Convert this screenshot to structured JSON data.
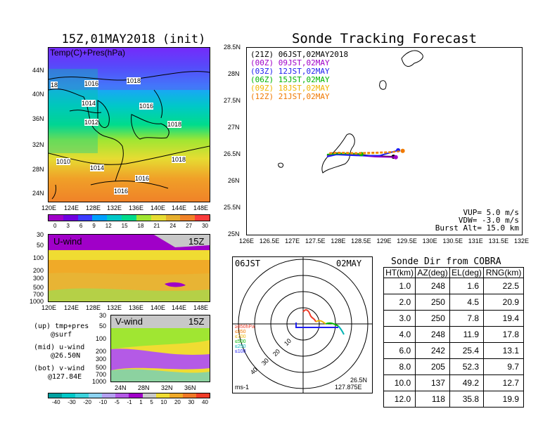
{
  "map_panel": {
    "title": "15Z,01MAY2018 (init)",
    "overlay_label": "Temp(C)+Pres(hPa)",
    "lat_labels": [
      "44N",
      "40N",
      "36N",
      "32N",
      "28N",
      "24N"
    ],
    "lon_labels": [
      "120E",
      "124E",
      "128E",
      "132E",
      "136E",
      "140E",
      "144E",
      "148E"
    ],
    "isobar_labels": [
      "18",
      "1016",
      "1018",
      "1014",
      "1016",
      "1012",
      "1018",
      "1010",
      "1014",
      "1018",
      "1016",
      "1016"
    ],
    "colorbar_labels": [
      "0",
      "3",
      "6",
      "9",
      "12",
      "15",
      "18",
      "21",
      "24",
      "27",
      "30"
    ],
    "colorbar_colors": [
      "#a000c8",
      "#7000e0",
      "#3c3cff",
      "#00a0ff",
      "#00c8c8",
      "#00dc8c",
      "#a0e632",
      "#e6dc32",
      "#e6af2d",
      "#f08228",
      "#fa3c3c"
    ]
  },
  "u_panel": {
    "label": "U-wind",
    "time": "15Z",
    "y_labels": [
      "30",
      "50",
      "100",
      "200",
      "300",
      "500",
      "700",
      "1000"
    ],
    "x_labels": [
      "120E",
      "124E",
      "128E",
      "132E",
      "136E",
      "140E",
      "144E",
      "148E"
    ]
  },
  "v_panel": {
    "label": "V-wind",
    "time": "15Z",
    "y_labels": [
      "30",
      "50",
      "100",
      "200",
      "300",
      "500",
      "700",
      "1000"
    ],
    "x_labels": [
      "24N",
      "28N",
      "32N",
      "36N"
    ]
  },
  "legend_notes": {
    "up1": "(up) tmp+pres",
    "up2": "@surf",
    "mid1": "(mid) u-wind",
    "mid2": "@26.50N",
    "bot1": "(bot) v-wind",
    "bot2": "@127.84E"
  },
  "wind_colorbar": {
    "labels": [
      "-40",
      "-30",
      "-20",
      "-10",
      "-5",
      "-1",
      "1",
      "5",
      "10",
      "20",
      "30",
      "40"
    ],
    "colors": [
      "#00a0a0",
      "#00c8c8",
      "#3cd2dc",
      "#8cd2f0",
      "#b4a0f0",
      "#b45ae6",
      "#a000c8",
      "#c8c8c8",
      "#f0dc32",
      "#f0aa28",
      "#f07828",
      "#f03c28"
    ]
  },
  "forecast": {
    "title": "Sonde Tracking Forecast",
    "lat_labels": [
      "28.5N",
      "28N",
      "27.5N",
      "27N",
      "26.5N",
      "26N",
      "25.5N",
      "25N"
    ],
    "lon_labels": [
      "126E",
      "126.5E",
      "127E",
      "127.5E",
      "128E",
      "128.5E",
      "129E",
      "129.5E",
      "130E",
      "130.5E",
      "131E",
      "131.5E",
      "132E"
    ],
    "legend": [
      {
        "run": "(21Z)",
        "time": "06JST,02MAY2018",
        "color": "#000000"
      },
      {
        "run": "(00Z)",
        "time": "09JST,02MAY",
        "color": "#a000c8"
      },
      {
        "run": "(03Z)",
        "time": "12JST,02MAY",
        "color": "#1e1ef0"
      },
      {
        "run": "(06Z)",
        "time": "15JST,02MAY",
        "color": "#00b400"
      },
      {
        "run": "(09Z)",
        "time": "18JST,02MAY",
        "color": "#f0b400"
      },
      {
        "run": "(12Z)",
        "time": "21JST,02MAY",
        "color": "#f07800"
      }
    ],
    "params": {
      "vup": "VUP= 5.0 m/s",
      "vdw": "VDW= -3.0 m/s",
      "burst": "Burst Alt= 15.0 km"
    }
  },
  "polar": {
    "time_label": "06JST",
    "date_label": "02MAY",
    "ring_labels": [
      "10",
      "20",
      "30",
      "40"
    ],
    "levels": [
      {
        "label": "≥850hPa",
        "color": "#f03c28"
      },
      {
        "label": "≤850",
        "color": "#f07800"
      },
      {
        "label": "≤700",
        "color": "#f0b400"
      },
      {
        "label": "≤500",
        "color": "#00b400"
      },
      {
        "label": "≤250",
        "color": "#00b4b4"
      },
      {
        "label": "≤100",
        "color": "#1e1ef0"
      }
    ],
    "units": "ms-1",
    "loc_lat": "26.5N",
    "loc_lon": "127.875E"
  },
  "sonde_dir": {
    "title": "Sonde Dir from COBRA",
    "headers": [
      "HT(km)",
      "AZ(deg)",
      "EL(deg)",
      "RNG(km)"
    ],
    "rows": [
      [
        "1.0",
        "248",
        "1.6",
        "22.5"
      ],
      [
        "2.0",
        "250",
        "4.5",
        "20.9"
      ],
      [
        "3.0",
        "250",
        "7.8",
        "19.4"
      ],
      [
        "4.0",
        "248",
        "11.9",
        "17.8"
      ],
      [
        "6.0",
        "242",
        "25.4",
        "13.1"
      ],
      [
        "8.0",
        "205",
        "52.3",
        "9.7"
      ],
      [
        "10.0",
        "137",
        "49.2",
        "12.7"
      ],
      [
        "12.0",
        "118",
        "35.8",
        "19.9"
      ]
    ]
  },
  "chart_data": {
    "type": "line",
    "title": "Sonde Tracking Forecast",
    "xlabel": "",
    "ylabel": "",
    "xlim": [
      126,
      132
    ],
    "ylim": [
      25,
      28.5
    ],
    "series": [
      {
        "name": "(21Z)",
        "color": "#000000",
        "x": [
          127.75,
          127.9,
          128.1,
          128.4,
          128.8,
          129.2
        ],
        "y": [
          26.49,
          26.53,
          26.52,
          26.5,
          26.47,
          26.46
        ]
      },
      {
        "name": "(00Z)",
        "color": "#a000c8",
        "x": [
          127.75,
          127.9,
          128.1,
          128.4,
          128.8,
          129.25
        ],
        "y": [
          26.47,
          26.52,
          26.51,
          26.49,
          26.46,
          26.45
        ]
      },
      {
        "name": "(03Z)",
        "color": "#1e1ef0",
        "x": [
          127.75,
          127.95,
          128.2,
          128.5,
          128.9,
          129.3
        ],
        "y": [
          26.46,
          26.5,
          26.49,
          26.48,
          26.48,
          26.58
        ]
      },
      {
        "name": "(06Z)",
        "color": "#00b400",
        "x": [
          127.75,
          127.95,
          128.2,
          128.5
        ],
        "y": [
          26.5,
          26.52,
          26.52,
          26.51
        ]
      },
      {
        "name": "(09Z)",
        "color": "#f0b400",
        "x": [
          127.8,
          128.0,
          128.3,
          128.7,
          129.1,
          129.4
        ],
        "y": [
          26.52,
          26.53,
          26.52,
          26.52,
          26.54,
          26.57
        ]
      },
      {
        "name": "(12Z)",
        "color": "#f07800",
        "x": [
          127.8,
          128.0,
          128.4,
          128.8,
          129.2,
          129.4
        ],
        "y": [
          26.53,
          26.54,
          26.53,
          26.54,
          26.55,
          26.57
        ]
      }
    ]
  }
}
